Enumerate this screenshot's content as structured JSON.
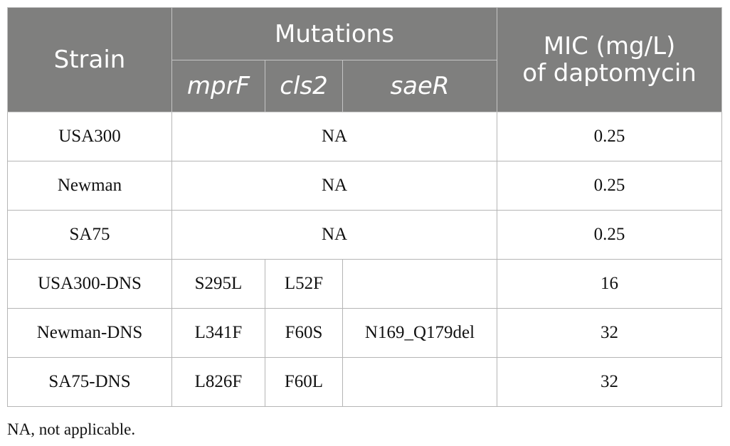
{
  "header": {
    "strain": "Strain",
    "mutations": "Mutations",
    "mic_line1": "MIC (mg/L)",
    "mic_line2": "of daptomycin",
    "genes": [
      "mprF",
      "cls2",
      "saeR"
    ]
  },
  "rows": [
    {
      "strain": "USA300",
      "merged": "NA",
      "mic": "0.25"
    },
    {
      "strain": "Newman",
      "merged": "NA",
      "mic": "0.25"
    },
    {
      "strain": "SA75",
      "merged": "NA",
      "mic": "0.25"
    },
    {
      "strain": "USA300-DNS",
      "mprF": "S295L",
      "cls2": "L52F",
      "saeR": "",
      "mic": "16"
    },
    {
      "strain": "Newman-DNS",
      "mprF": "L341F",
      "cls2": "F60S",
      "saeR": "N169_Q179del",
      "mic": "32"
    },
    {
      "strain": "SA75-DNS",
      "mprF": "L826F",
      "cls2": "F60L",
      "saeR": "",
      "mic": "32"
    }
  ],
  "footnote": "NA, not applicable.",
  "colors": {
    "header_bg": "#7f7f7e",
    "header_text": "#ffffff"
  }
}
